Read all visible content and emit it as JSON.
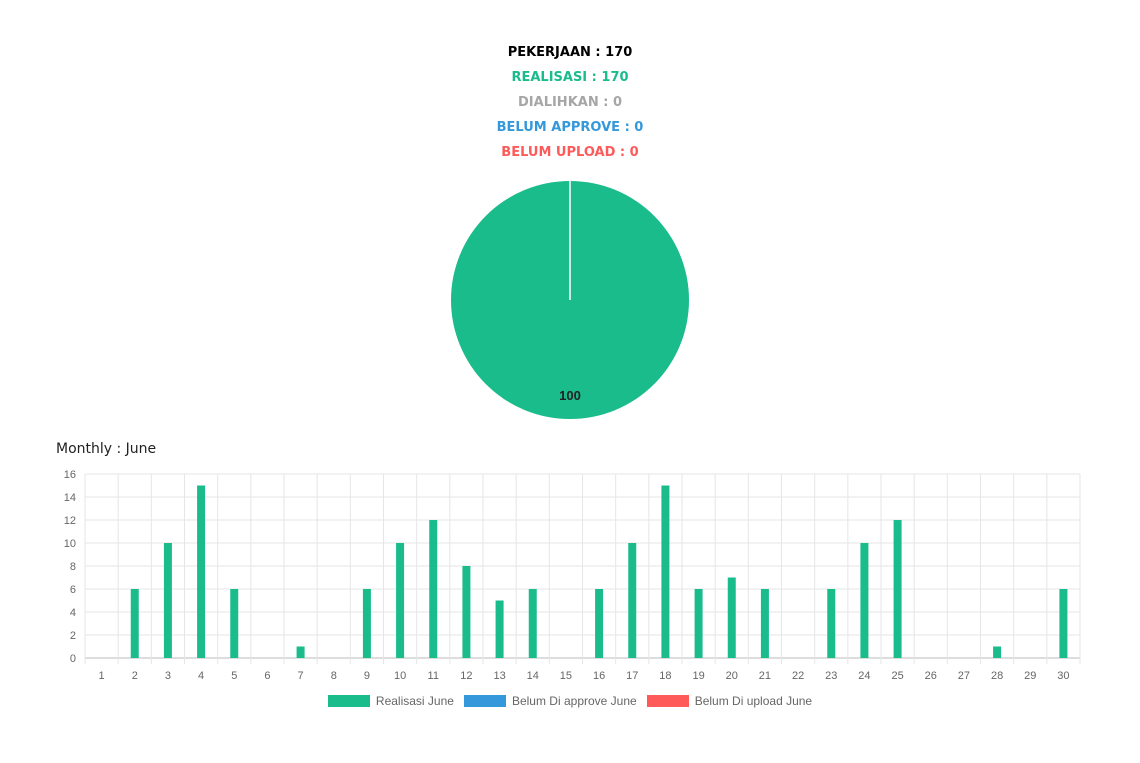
{
  "summary": {
    "pekerjaan": "PEKERJAAN : 170",
    "realisasi": "REALISASI : 170",
    "dialihkan": "DIALIHKAN : 0",
    "belum_approve": "BELUM APPROVE : 0",
    "belum_upload": "BELUM UPLOAD : 0"
  },
  "colors": {
    "realisasi": "#1abc8c",
    "belum_approve": "#3498db",
    "belum_upload": "#ff5a5a",
    "grid": "#e6e6e6",
    "tick": "#666666"
  },
  "monthly_title": "Monthly : June",
  "chart_data": [
    {
      "type": "pie",
      "slices": [
        {
          "value": 100,
          "color": "#1abc8c"
        }
      ],
      "data_labels": [
        "100"
      ]
    },
    {
      "type": "bar",
      "title": "Monthly : June",
      "categories": [
        "1",
        "2",
        "3",
        "4",
        "5",
        "6",
        "7",
        "8",
        "9",
        "10",
        "11",
        "12",
        "13",
        "14",
        "15",
        "16",
        "17",
        "18",
        "19",
        "20",
        "21",
        "22",
        "23",
        "24",
        "25",
        "26",
        "27",
        "28",
        "29",
        "30"
      ],
      "series": [
        {
          "name": "Realisasi June",
          "color": "#1abc8c",
          "values": [
            0,
            6,
            10,
            15,
            6,
            0,
            1,
            0,
            6,
            10,
            12,
            8,
            5,
            6,
            0,
            6,
            10,
            15,
            6,
            7,
            6,
            0,
            6,
            10,
            12,
            0,
            0,
            1,
            0,
            6
          ]
        },
        {
          "name": "Belum Di approve June",
          "color": "#3498db",
          "values": [
            0,
            0,
            0,
            0,
            0,
            0,
            0,
            0,
            0,
            0,
            0,
            0,
            0,
            0,
            0,
            0,
            0,
            0,
            0,
            0,
            0,
            0,
            0,
            0,
            0,
            0,
            0,
            0,
            0,
            0
          ]
        },
        {
          "name": "Belum Di upload June",
          "color": "#ff5a5a",
          "values": [
            0,
            0,
            0,
            0,
            0,
            0,
            0,
            0,
            0,
            0,
            0,
            0,
            0,
            0,
            0,
            0,
            0,
            0,
            0,
            0,
            0,
            0,
            0,
            0,
            0,
            0,
            0,
            0,
            0,
            0
          ]
        }
      ],
      "ylim": [
        0,
        16
      ],
      "yticks": [
        0,
        2,
        4,
        6,
        8,
        10,
        12,
        14,
        16
      ],
      "grid": true,
      "legend": "bottom"
    }
  ]
}
